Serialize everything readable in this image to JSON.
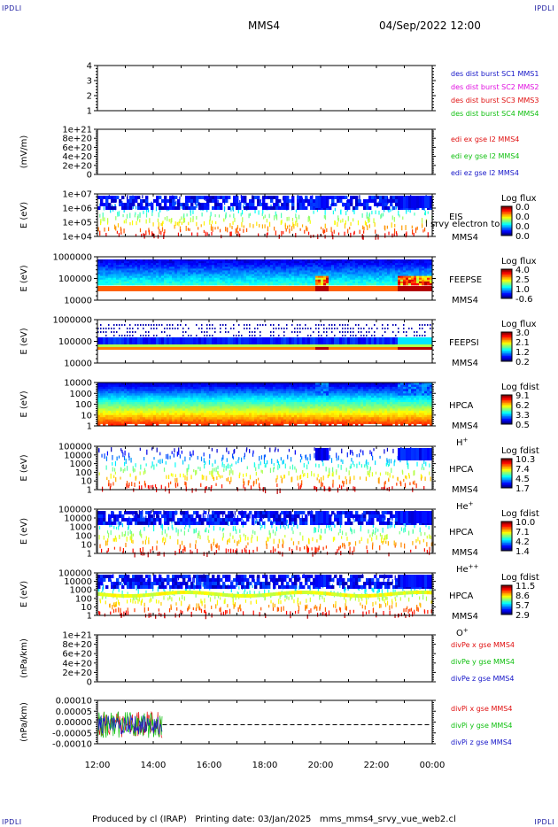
{
  "corners": {
    "tl": "IPDLI",
    "tr": "IPDLI",
    "bl": "IPDLI",
    "br": "IPDLI"
  },
  "header": {
    "spacecraft": "MMS4",
    "datetime": "04/Sep/2022 12:00"
  },
  "footer": "Produced by cl (IRAP)   Printing date: 03/Jan/2025   mms_mms4_srvy_vue_web2.cl",
  "time_axis": {
    "ticks": [
      "12:00",
      "14:00",
      "16:00",
      "18:00",
      "20:00",
      "22:00",
      "00:00"
    ]
  },
  "colors": {
    "blue": "#1515c8",
    "magenta": "#e010e0",
    "red": "#e01010",
    "green": "#10c010"
  },
  "chart_data": [
    {
      "type": "line",
      "id": "burst",
      "yticks": [
        "4",
        "3",
        "2",
        "1"
      ],
      "ylabel": "",
      "legend": [
        {
          "text": "des dist burst SC1 MMS1",
          "color": "#1515c8"
        },
        {
          "text": "des dist burst SC2 MMS2",
          "color": "#e010e0"
        },
        {
          "text": "des dist burst SC3 MMS3",
          "color": "#e01010"
        },
        {
          "text": "des dist burst SC4 MMS4",
          "color": "#10c010"
        }
      ]
    },
    {
      "type": "line",
      "id": "edi",
      "ylabel": "(mV/m)",
      "yticks": [
        "1e+21",
        "8e+20",
        "6e+20",
        "4e+20",
        "2e+20",
        "0"
      ],
      "legend": [
        {
          "text": "edi ex gse l2 MMS4",
          "color": "#e01010"
        },
        {
          "text": "edi ey gse l2 MMS4",
          "color": "#10c010"
        },
        {
          "text": "edi ez gse l2 MMS4",
          "color": "#1515c8"
        }
      ]
    },
    {
      "type": "heatmap",
      "id": "eis",
      "ylabel": "E (eV)",
      "yticks": [
        "1e+07",
        "1e+06",
        "1e+05",
        "1e+04"
      ],
      "labels": [
        "EIS",
        "MMS4"
      ],
      "overlap": "l srvy electron to",
      "colorbar": {
        "title": "Log flux",
        "ticks": [
          "0.0",
          "0.0",
          "0.0",
          "0.0"
        ]
      }
    },
    {
      "type": "heatmap",
      "id": "feepse",
      "ylabel": "E (eV)",
      "yticks": [
        "1000000",
        "100000",
        "10000"
      ],
      "labels": [
        "FEEPSE",
        "MMS4"
      ],
      "colorbar": {
        "title": "Log flux",
        "ticks": [
          "4.0",
          "2.5",
          "1.0",
          "-0.6"
        ]
      }
    },
    {
      "type": "heatmap",
      "id": "feepsi",
      "ylabel": "E (eV)",
      "yticks": [
        "1000000",
        "100000",
        "10000"
      ],
      "labels": [
        "FEEPSI",
        "MMS4"
      ],
      "colorbar": {
        "title": "Log flux",
        "ticks": [
          "3.0",
          "2.1",
          "1.2",
          "0.2"
        ]
      }
    },
    {
      "type": "heatmap",
      "id": "hpca_h",
      "ylabel": "E (eV)",
      "yticks": [
        "10000",
        "1000",
        "100",
        "10",
        "1"
      ],
      "labels": [
        "HPCA",
        "MMS4",
        "H+"
      ],
      "colorbar": {
        "title": "Log fdist",
        "ticks": [
          "9.1",
          "6.2",
          "3.3",
          "0.5"
        ]
      }
    },
    {
      "type": "heatmap",
      "id": "hpca_he",
      "ylabel": "E (eV)",
      "yticks": [
        "100000",
        "10000",
        "1000",
        "100",
        "10",
        "1"
      ],
      "labels": [
        "HPCA",
        "MMS4",
        "He+"
      ],
      "colorbar": {
        "title": "Log fdist",
        "ticks": [
          "10.3",
          "7.4",
          "4.5",
          "1.7"
        ]
      }
    },
    {
      "type": "heatmap",
      "id": "hpca_hepp",
      "ylabel": "E (eV)",
      "yticks": [
        "100000",
        "10000",
        "1000",
        "100",
        "10",
        "1"
      ],
      "labels": [
        "HPCA",
        "MMS4",
        "He++"
      ],
      "colorbar": {
        "title": "Log fdist",
        "ticks": [
          "10.0",
          "7.1",
          "4.2",
          "1.4"
        ]
      }
    },
    {
      "type": "heatmap",
      "id": "hpca_o",
      "ylabel": "E (eV)",
      "yticks": [
        "100000",
        "10000",
        "1000",
        "100",
        "10",
        "1"
      ],
      "labels": [
        "HPCA",
        "MMS4",
        "O+"
      ],
      "colorbar": {
        "title": "Log fdist",
        "ticks": [
          "11.5",
          "8.6",
          "5.7",
          "2.9"
        ]
      }
    },
    {
      "type": "line",
      "id": "divpe",
      "ylabel": "(nPa/km)",
      "yticks": [
        "1e+21",
        "8e+20",
        "6e+20",
        "4e+20",
        "2e+20",
        "0"
      ],
      "legend": [
        {
          "text": "divPe x gse MMS4",
          "color": "#e01010"
        },
        {
          "text": "divPe y gse MMS4",
          "color": "#10c010"
        },
        {
          "text": "divPe z gse MMS4",
          "color": "#1515c8"
        }
      ]
    },
    {
      "type": "line",
      "id": "divpi",
      "ylabel": "(nPa/km)",
      "yticks": [
        "0.00010",
        "0.00005",
        "0.00000",
        "-0.00005",
        "-0.00010"
      ],
      "ylim": [
        -0.0001,
        0.0001
      ],
      "data_end": "14:20",
      "legend": [
        {
          "text": "divPi x gse MMS4",
          "color": "#e01010"
        },
        {
          "text": "divPi y gse MMS4",
          "color": "#10c010"
        },
        {
          "text": "divPi z gse MMS4",
          "color": "#1515c8"
        }
      ]
    }
  ]
}
